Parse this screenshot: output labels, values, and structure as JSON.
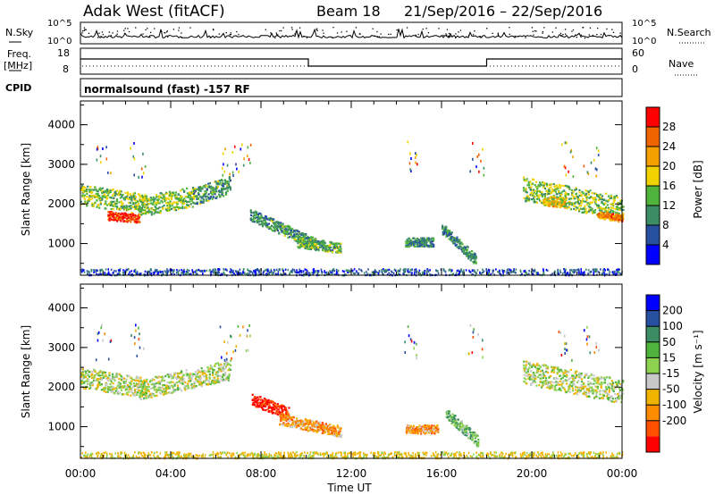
{
  "header": {
    "radar": "Adak West (fitACF)",
    "beam": "Beam 18",
    "date_range": "21/Sep/2016 – 22/Sep/2016"
  },
  "sidebar_labels": {
    "nsky": "N.Sky",
    "nsky_lo": "10^0",
    "nsky_hi": "10^5",
    "freq": "Freq.",
    "freq_unit": "[MHz]",
    "freq_hi": "18",
    "freq_lo": "8",
    "cpid": "CPID",
    "nsearch": "N.Search",
    "nsearch_lo": "10^0",
    "nsearch_hi": "10^5",
    "nave": "Nave",
    "nave_hi": "60",
    "nave_lo": "0"
  },
  "mode_text": "normalsound (fast) -157 RF",
  "colors": {
    "power_scale": [
      "#0000ff",
      "#2850a0",
      "#3c8c64",
      "#50b43c",
      "#f0d200",
      "#f5a000",
      "#f06400",
      "#ff0000"
    ],
    "velocity_scale": [
      "#ff0000",
      "#ff5000",
      "#ff8c00",
      "#f0b400",
      "#c8c8c8",
      "#8cd250",
      "#50b43c",
      "#3c8c64",
      "#2850a0",
      "#0000ff"
    ]
  },
  "chart_data": [
    {
      "type": "heatmap",
      "name": "power",
      "xlabel": "",
      "ylabel": "Slant Range [km]",
      "ylim": [
        200,
        4600
      ],
      "yticks": [
        "1000",
        "2000",
        "3000",
        "4000"
      ],
      "colorbar": {
        "label": "Power [dB]",
        "ticks": [
          "4",
          "8",
          "12",
          "16",
          "20",
          "24",
          "28"
        ]
      },
      "regions": [
        {
          "t": [
            0,
            2.9
          ],
          "r0": 2250,
          "r1": 2000,
          "dr": 260,
          "level": 0.45
        },
        {
          "t": [
            1.2,
            2.6
          ],
          "r0": 1720,
          "r1": 1650,
          "dr": 110,
          "level": 0.9
        },
        {
          "t": [
            2.6,
            5.0
          ],
          "r0": 1950,
          "r1": 2200,
          "dr": 250,
          "level": 0.45
        },
        {
          "t": [
            5.0,
            6.6
          ],
          "r0": 2200,
          "r1": 2500,
          "dr": 220,
          "level": 0.35
        },
        {
          "t": [
            7.5,
            10.4
          ],
          "r0": 1750,
          "r1": 1000,
          "dr": 150,
          "level": 0.35
        },
        {
          "t": [
            9.6,
            11.5
          ],
          "r0": 1050,
          "r1": 900,
          "dr": 130,
          "level": 0.4
        },
        {
          "t": [
            14.4,
            15.6
          ],
          "r0": 1050,
          "r1": 1050,
          "dr": 110,
          "level": 0.3
        },
        {
          "t": [
            16.0,
            17.5
          ],
          "r0": 1400,
          "r1": 600,
          "dr": 140,
          "level": 0.3
        },
        {
          "t": [
            19.6,
            24.0
          ],
          "r0": 2400,
          "r1": 1900,
          "dr": 300,
          "level": 0.45
        },
        {
          "t": [
            20.5,
            21.5
          ],
          "r0": 2100,
          "r1": 2050,
          "dr": 130,
          "level": 0.6
        },
        {
          "t": [
            22.9,
            24.0
          ],
          "r0": 1750,
          "r1": 1650,
          "dr": 90,
          "level": 0.75
        }
      ]
    },
    {
      "type": "heatmap",
      "name": "velocity",
      "xlabel": "Time UT",
      "ylabel": "Slant Range [km]",
      "ylim": [
        200,
        4600
      ],
      "yticks": [
        "1000",
        "2000",
        "3000",
        "4000"
      ],
      "xticks": [
        "00:00",
        "04:00",
        "08:00",
        "12:00",
        "16:00",
        "20:00",
        "00:00"
      ],
      "colorbar": {
        "label": "Velocity [m s⁻¹]",
        "ticks": [
          "200",
          "100",
          "50",
          "15",
          "-15",
          "-50",
          "-100",
          "-200"
        ]
      },
      "regions": [
        {
          "t": [
            0,
            2.9
          ],
          "r0": 2250,
          "r1": 2000,
          "dr": 260,
          "level": 0.5
        },
        {
          "t": [
            2.6,
            6.6
          ],
          "r0": 1950,
          "r1": 2450,
          "dr": 250,
          "level": 0.5
        },
        {
          "t": [
            7.6,
            9.2
          ],
          "r0": 1700,
          "r1": 1350,
          "dr": 150,
          "level": 0.05
        },
        {
          "t": [
            8.8,
            11.5
          ],
          "r0": 1200,
          "r1": 900,
          "dr": 140,
          "level": 0.3
        },
        {
          "t": [
            14.4,
            15.8
          ],
          "r0": 950,
          "r1": 950,
          "dr": 110,
          "level": 0.3
        },
        {
          "t": [
            16.2,
            17.6
          ],
          "r0": 1350,
          "r1": 650,
          "dr": 140,
          "level": 0.62
        },
        {
          "t": [
            19.6,
            24.0
          ],
          "r0": 2400,
          "r1": 1900,
          "dr": 300,
          "level": 0.5
        }
      ]
    }
  ]
}
